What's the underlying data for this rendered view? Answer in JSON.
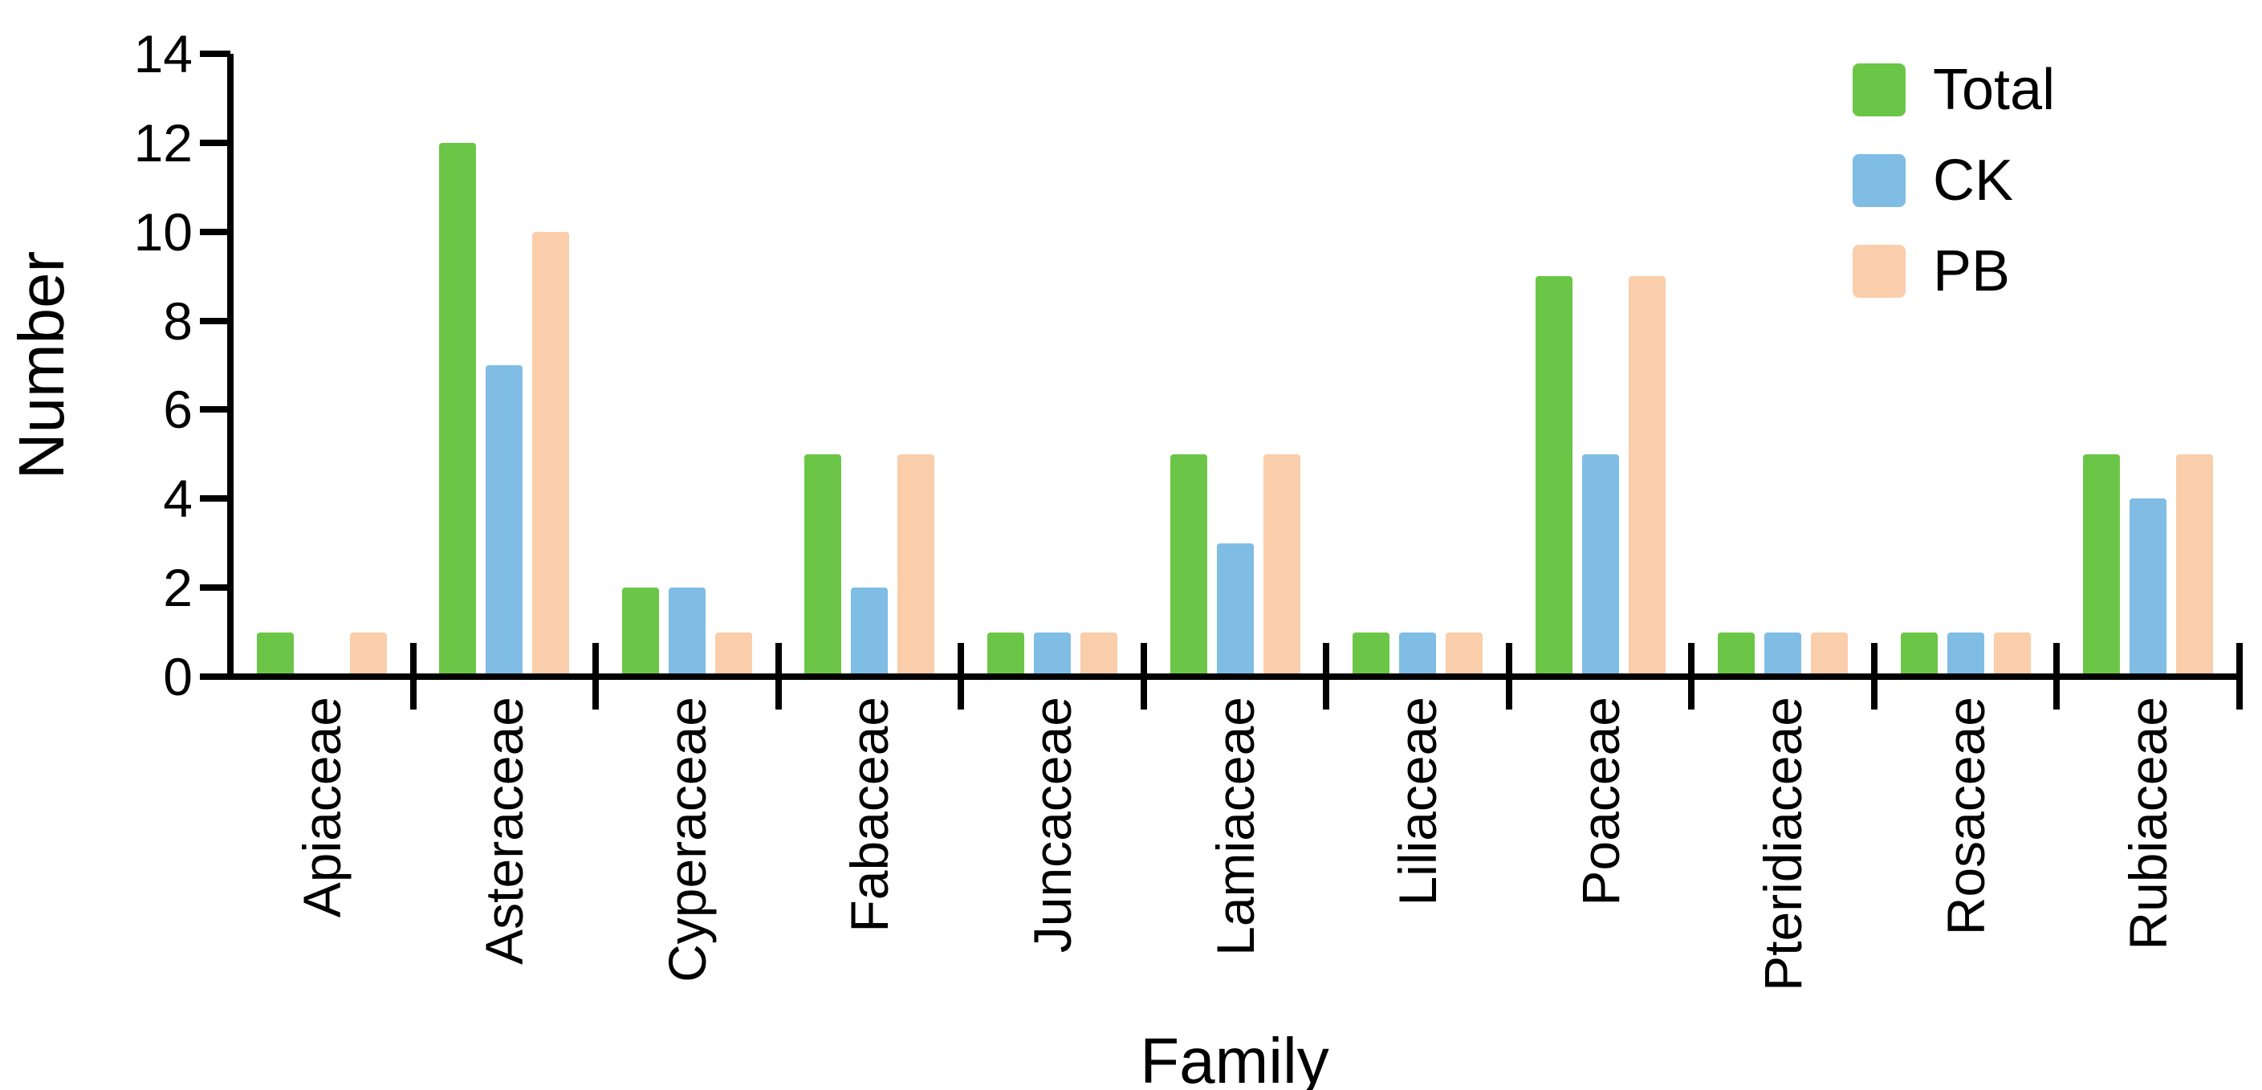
{
  "chart_data": {
    "type": "bar",
    "title": "",
    "xlabel": "Family",
    "ylabel": "Number",
    "ylim": [
      0,
      14
    ],
    "yticks": [
      0,
      2,
      4,
      6,
      8,
      10,
      12,
      14
    ],
    "grid": false,
    "legend_position": "top-right",
    "categories": [
      "Apiaceae",
      "Asteraceae",
      "Cyperaceae",
      "Fabaceae",
      "Juncaceae",
      "Lamiaceae",
      "Liliaceae",
      "Poaceae",
      "Pteridiaceae",
      "Rosaceae",
      "Rubiaceae"
    ],
    "series": [
      {
        "name": "Total",
        "color": "#6BC647",
        "values": [
          1,
          12,
          2,
          5,
          1,
          5,
          1,
          9,
          1,
          1,
          5
        ]
      },
      {
        "name": "CK",
        "color": "#7FBDE4",
        "values": [
          0,
          7,
          2,
          2,
          1,
          3,
          1,
          5,
          1,
          1,
          4
        ]
      },
      {
        "name": "PB",
        "color": "#FACDAB",
        "values": [
          1,
          10,
          1,
          5,
          1,
          5,
          1,
          9,
          1,
          1,
          5
        ]
      }
    ],
    "axis_color": "#000000",
    "text_color": "#000000"
  }
}
